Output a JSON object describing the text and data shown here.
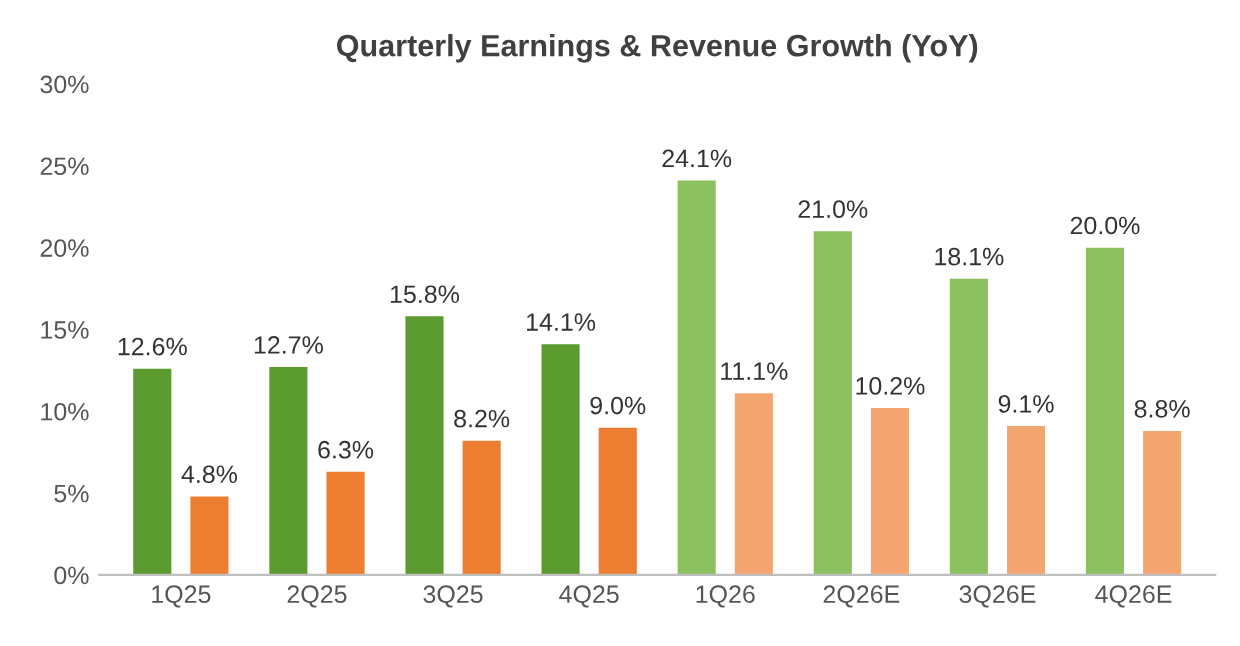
{
  "chart_data": {
    "type": "bar",
    "title": "Quarterly Earnings & Revenue Growth (YoY)",
    "categories": [
      "1Q25",
      "2Q25",
      "3Q25",
      "4Q25",
      "1Q26",
      "2Q26E",
      "3Q26E",
      "4Q26E"
    ],
    "series": [
      {
        "colors": [
          "#5b9b2f",
          "#5b9b2f",
          "#5b9b2f",
          "#5b9b2f",
          "#8dc05f",
          "#8dc05f",
          "#8dc05f",
          "#8dc05f"
        ],
        "values": [
          12.6,
          12.7,
          15.8,
          14.1,
          24.1,
          21.0,
          18.1,
          20.0
        ],
        "value_labels": [
          "12.6%",
          "12.7%",
          "15.8%",
          "14.1%",
          "24.1%",
          "21.0%",
          "18.1%",
          "20.0%"
        ]
      },
      {
        "colors": [
          "#ed7d31",
          "#ed7d31",
          "#ed7d31",
          "#ed7d31",
          "#f4a670",
          "#f4a670",
          "#f4a670",
          "#f4a670"
        ],
        "values": [
          4.8,
          6.3,
          8.2,
          9.0,
          11.1,
          10.2,
          9.1,
          8.8
        ],
        "value_labels": [
          "4.8%",
          "6.3%",
          "8.2%",
          "9.0%",
          "11.1%",
          "10.2%",
          "9.1%",
          "8.8%"
        ]
      }
    ],
    "ylim": [
      0,
      30
    ],
    "yticks": [
      {
        "value": 0,
        "label": "0%"
      },
      {
        "value": 5,
        "label": "5%"
      },
      {
        "value": 10,
        "label": "10%"
      },
      {
        "value": 15,
        "label": "15%"
      },
      {
        "value": 20,
        "label": "20%"
      },
      {
        "value": 25,
        "label": "25%"
      },
      {
        "value": 30,
        "label": "30%"
      }
    ],
    "grid": false,
    "legend": false
  }
}
